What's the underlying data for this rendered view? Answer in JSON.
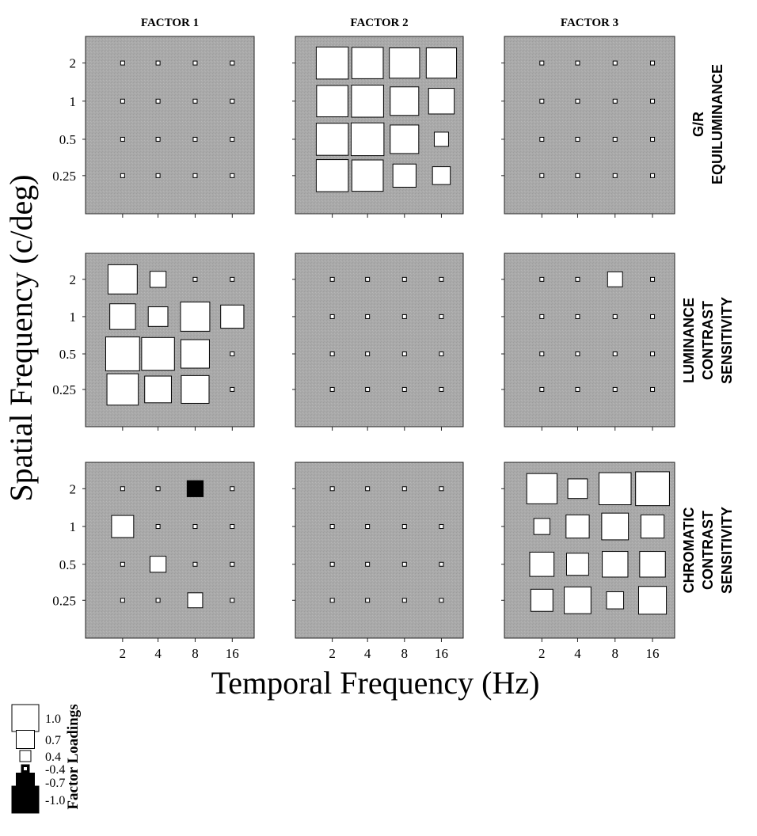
{
  "chart_data": {
    "type": "heatmap",
    "encoding": "hinton",
    "columns": [
      "FACTOR 1",
      "FACTOR 2",
      "FACTOR 3"
    ],
    "rows": [
      "G/R EQUILUMINANCE",
      "LUMINANCE CONTRAST SENSITIVITY",
      "CHROMATIC CONTRAST SENSITIVITY"
    ],
    "xlabel": "Temporal Frequency (Hz)",
    "ylabel": "Spatial Frequency (c/deg)",
    "x_ticks": [
      "2",
      "4",
      "8",
      "16"
    ],
    "y_ticks": [
      "2",
      "1",
      "0.5",
      "0.25"
    ],
    "legend": {
      "title": "Factor Loadings",
      "entries": [
        {
          "label": "1.0",
          "value": 1.0
        },
        {
          "label": "0.7",
          "value": 0.7
        },
        {
          "label": "0.4",
          "value": 0.4
        },
        {
          "label": "-0.4",
          "value": -0.4
        },
        {
          "label": "-0.7",
          "value": -0.7
        },
        {
          "label": "-1.0",
          "value": -1.0
        }
      ]
    },
    "panels": [
      {
        "row": 0,
        "col": 0,
        "values": [
          [
            0.05,
            0.05,
            0.05,
            0.05
          ],
          [
            0.05,
            0.05,
            0.05,
            0.05
          ],
          [
            0.05,
            0.05,
            0.05,
            0.05
          ],
          [
            0.05,
            0.05,
            0.05,
            0.05
          ]
        ]
      },
      {
        "row": 0,
        "col": 1,
        "values": [
          [
            0.9,
            0.88,
            0.85,
            0.85
          ],
          [
            0.88,
            0.9,
            0.8,
            0.72
          ],
          [
            0.9,
            0.92,
            0.8,
            0.4
          ],
          [
            0.9,
            0.88,
            0.65,
            0.5
          ]
        ]
      },
      {
        "row": 0,
        "col": 2,
        "values": [
          [
            0.05,
            0.05,
            0.05,
            0.05
          ],
          [
            0.05,
            0.05,
            0.05,
            0.05
          ],
          [
            0.05,
            0.05,
            0.05,
            0.05
          ],
          [
            0.05,
            0.05,
            0.05,
            0.05
          ]
        ]
      },
      {
        "row": 1,
        "col": 0,
        "values": [
          [
            0.82,
            0.45,
            0.05,
            0.05
          ],
          [
            0.72,
            0.55,
            0.82,
            0.65
          ],
          [
            0.95,
            0.92,
            0.8,
            0.05
          ],
          [
            0.88,
            0.75,
            0.78,
            0.05
          ]
        ]
      },
      {
        "row": 1,
        "col": 1,
        "values": [
          [
            0.05,
            0.05,
            0.05,
            0.05
          ],
          [
            0.05,
            0.05,
            0.05,
            0.05
          ],
          [
            0.05,
            0.05,
            0.05,
            0.05
          ],
          [
            0.05,
            0.05,
            0.05,
            0.05
          ]
        ]
      },
      {
        "row": 1,
        "col": 2,
        "values": [
          [
            0.05,
            0.05,
            0.42,
            0.05
          ],
          [
            0.05,
            0.05,
            0.05,
            0.05
          ],
          [
            0.05,
            0.05,
            0.05,
            0.05
          ],
          [
            0.05,
            0.05,
            0.05,
            0.05
          ]
        ]
      },
      {
        "row": 2,
        "col": 0,
        "values": [
          [
            0.05,
            0.05,
            -0.45,
            0.05
          ],
          [
            0.62,
            0.05,
            0.05,
            0.05
          ],
          [
            0.05,
            0.45,
            0.05,
            0.05
          ],
          [
            0.05,
            0.05,
            0.42,
            0.05
          ]
        ]
      },
      {
        "row": 2,
        "col": 1,
        "values": [
          [
            0.05,
            0.05,
            0.05,
            0.05
          ],
          [
            0.05,
            0.05,
            0.05,
            0.05
          ],
          [
            0.05,
            0.05,
            0.05,
            0.05
          ],
          [
            0.05,
            0.05,
            0.05,
            0.05
          ]
        ]
      },
      {
        "row": 2,
        "col": 2,
        "values": [
          [
            0.85,
            0.55,
            0.9,
            0.95
          ],
          [
            0.45,
            0.65,
            0.75,
            0.65
          ],
          [
            0.68,
            0.62,
            0.72,
            0.72
          ],
          [
            0.62,
            0.75,
            0.48,
            0.78
          ]
        ]
      }
    ]
  }
}
